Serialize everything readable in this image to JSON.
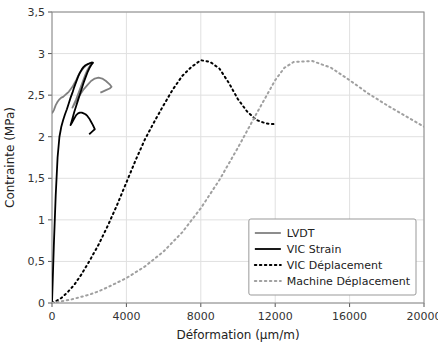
{
  "chart_data": {
    "type": "line",
    "xlabel": "Déformation (μm/m)",
    "ylabel": "Contrainte (MPa)",
    "xlim": [
      0,
      20000
    ],
    "ylim": [
      0,
      3.5
    ],
    "xticks": [
      0,
      4000,
      8000,
      12000,
      16000,
      20000
    ],
    "yticks": [
      0,
      {
        "value": 0.5,
        "label": "0,5"
      },
      1,
      {
        "value": 1.5,
        "label": "1,5"
      },
      2,
      {
        "value": 2.5,
        "label": "2,5"
      },
      3,
      {
        "value": 3.5,
        "label": "3,5"
      }
    ],
    "grid": true,
    "legend": "lower right",
    "series": [
      {
        "name": "LVDT",
        "color": "#808080",
        "line_style": "solid",
        "x": [
          0,
          50,
          100,
          200,
          300,
          400,
          500,
          600,
          700,
          800,
          900,
          1000,
          1100,
          1200,
          1300,
          1400,
          1500,
          1600,
          1700,
          1800,
          1900,
          2000,
          2100,
          2200,
          2200,
          2100,
          2000,
          1900,
          1800,
          1700,
          1600,
          1500,
          1400,
          1300,
          1200,
          1100,
          1100,
          1200,
          1300,
          1500,
          1700,
          1900,
          2100,
          2300,
          2500,
          2700,
          2900,
          3100,
          3200,
          3200,
          3100,
          2900,
          2700,
          2600
        ],
        "values": [
          2.28,
          2.3,
          2.32,
          2.38,
          2.42,
          2.45,
          2.47,
          2.48,
          2.5,
          2.52,
          2.54,
          2.57,
          2.6,
          2.64,
          2.68,
          2.73,
          2.77,
          2.8,
          2.83,
          2.85,
          2.87,
          2.88,
          2.89,
          2.89,
          2.89,
          2.87,
          2.84,
          2.8,
          2.75,
          2.69,
          2.63,
          2.57,
          2.51,
          2.45,
          2.4,
          2.35,
          2.35,
          2.39,
          2.43,
          2.5,
          2.57,
          2.62,
          2.67,
          2.7,
          2.71,
          2.7,
          2.67,
          2.63,
          2.6,
          2.6,
          2.58,
          2.56,
          2.54,
          2.53
        ]
      },
      {
        "name": "VIC Strain",
        "color": "#000000",
        "line_style": "solid",
        "x": [
          0,
          100,
          200,
          300,
          400,
          500,
          600,
          700,
          800,
          900,
          1000,
          1100,
          1200,
          1300,
          1400,
          1500,
          1600,
          1700,
          1800,
          1900,
          2000,
          2100,
          2200,
          2200,
          2100,
          2000,
          1900,
          1800,
          1700,
          1600,
          1500,
          1400,
          1300,
          1200,
          1100,
          1000,
          1000,
          1100,
          1200,
          1300,
          1400,
          1500,
          1600,
          1700,
          1800,
          1900,
          2000,
          2100,
          2200,
          2300,
          2300,
          2200,
          2100,
          2000
        ],
        "values": [
          0,
          0.7,
          1.3,
          1.75,
          2.0,
          2.12,
          2.2,
          2.27,
          2.33,
          2.4,
          2.47,
          2.53,
          2.6,
          2.66,
          2.72,
          2.77,
          2.81,
          2.84,
          2.86,
          2.87,
          2.88,
          2.89,
          2.89,
          2.89,
          2.86,
          2.82,
          2.77,
          2.71,
          2.65,
          2.58,
          2.51,
          2.44,
          2.37,
          2.3,
          2.22,
          2.14,
          2.14,
          2.18,
          2.22,
          2.26,
          2.28,
          2.29,
          2.29,
          2.28,
          2.27,
          2.25,
          2.22,
          2.18,
          2.14,
          2.09,
          2.09,
          2.07,
          2.05,
          2.03
        ]
      },
      {
        "name": "VIC Déplacement",
        "color": "#000000",
        "line_style": "dotted",
        "x": [
          0,
          200,
          500,
          800,
          1200,
          1600,
          2000,
          2500,
          3000,
          3500,
          4000,
          4500,
          5000,
          5500,
          6000,
          6500,
          7000,
          7500,
          8000,
          8500,
          9000,
          9500,
          10000,
          10500,
          11000,
          11500,
          12000
        ],
        "values": [
          0,
          0.02,
          0.06,
          0.12,
          0.22,
          0.35,
          0.5,
          0.7,
          0.93,
          1.18,
          1.45,
          1.72,
          1.97,
          2.18,
          2.38,
          2.57,
          2.73,
          2.84,
          2.92,
          2.9,
          2.82,
          2.65,
          2.45,
          2.3,
          2.2,
          2.16,
          2.15
        ]
      },
      {
        "name": "Machine Déplacement",
        "color": "#a0a0a0",
        "line_style": "dotted",
        "x": [
          0,
          500,
          1000,
          1500,
          2000,
          2500,
          3000,
          4000,
          5000,
          6000,
          7000,
          8000,
          9000,
          10000,
          11000,
          12000,
          12500,
          13000,
          14000,
          15000,
          16000,
          17000,
          18000,
          19000,
          20000
        ],
        "values": [
          0,
          0.02,
          0.04,
          0.07,
          0.1,
          0.14,
          0.19,
          0.3,
          0.44,
          0.62,
          0.85,
          1.14,
          1.48,
          1.87,
          2.28,
          2.68,
          2.83,
          2.9,
          2.91,
          2.83,
          2.68,
          2.52,
          2.38,
          2.25,
          2.12
        ]
      }
    ]
  }
}
